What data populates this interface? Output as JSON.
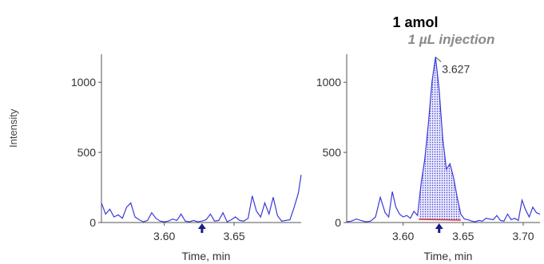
{
  "annotation": {
    "title": "1 amol",
    "subtitle": "1 µL injection"
  },
  "colors": {
    "trace": "#3a3ad8",
    "peak_fill": "#3a3ad8",
    "baseline": "#e03030",
    "axis": "#555555",
    "marker": "#1a1a8c"
  },
  "chart_data": [
    {
      "type": "line",
      "ylabel": "Intensity",
      "xlabel": "Time, min",
      "xlim": [
        3.555,
        3.698
      ],
      "ylim": [
        0,
        1200
      ],
      "xticks": [
        3.6,
        3.65
      ],
      "xtick_labels": [
        "3.60",
        "3.65"
      ],
      "yticks": [
        0,
        500,
        1000
      ],
      "ytick_labels": [
        "0",
        "500",
        "1000"
      ],
      "marker_x": 3.627,
      "series": [
        {
          "x": [
            3.555,
            3.558,
            3.561,
            3.564,
            3.567,
            3.57,
            3.573,
            3.576,
            3.579,
            3.582,
            3.585,
            3.588,
            3.591,
            3.594,
            3.597,
            3.6,
            3.603,
            3.606,
            3.609,
            3.612,
            3.615,
            3.618,
            3.621,
            3.624,
            3.627,
            3.63,
            3.633,
            3.636,
            3.639,
            3.642,
            3.645,
            3.648,
            3.651,
            3.654,
            3.657,
            3.66,
            3.663,
            3.666,
            3.669,
            3.672,
            3.675,
            3.678,
            3.681,
            3.684,
            3.687,
            3.69,
            3.693,
            3.696,
            3.698
          ],
          "y": [
            140,
            60,
            95,
            40,
            55,
            30,
            110,
            140,
            40,
            20,
            5,
            15,
            70,
            30,
            10,
            5,
            10,
            25,
            15,
            60,
            10,
            5,
            15,
            5,
            10,
            20,
            60,
            10,
            15,
            70,
            5,
            20,
            40,
            15,
            10,
            30,
            190,
            80,
            40,
            140,
            60,
            180,
            50,
            10,
            15,
            20,
            110,
            210,
            340
          ]
        }
      ]
    },
    {
      "type": "area",
      "xlabel": "Time, min",
      "xlim": [
        3.553,
        3.714
      ],
      "ylim": [
        0,
        1200
      ],
      "xticks": [
        3.6,
        3.65,
        3.7
      ],
      "xtick_labels": [
        "3.60",
        "3.65",
        "3.70"
      ],
      "yticks": [
        0,
        500,
        1000
      ],
      "ytick_labels": [
        "0",
        "500",
        "1000"
      ],
      "marker_x": 3.63,
      "peak": {
        "apex_x": 3.627,
        "apex_y": 1180,
        "label": "3.627",
        "start_x": 3.613,
        "end_x": 3.648
      },
      "series": [
        {
          "x": [
            3.553,
            3.557,
            3.561,
            3.565,
            3.569,
            3.573,
            3.577,
            3.581,
            3.585,
            3.588,
            3.591,
            3.594,
            3.597,
            3.6,
            3.603,
            3.606,
            3.609,
            3.612,
            3.615,
            3.618,
            3.621,
            3.624,
            3.627,
            3.63,
            3.633,
            3.636,
            3.639,
            3.642,
            3.645,
            3.648,
            3.651,
            3.654,
            3.657,
            3.66,
            3.663,
            3.666,
            3.669,
            3.672,
            3.675,
            3.678,
            3.681,
            3.684,
            3.687,
            3.69,
            3.693,
            3.696,
            3.699,
            3.702,
            3.705,
            3.708,
            3.711,
            3.714
          ],
          "y": [
            5,
            10,
            25,
            15,
            5,
            10,
            40,
            180,
            70,
            40,
            220,
            110,
            60,
            40,
            50,
            30,
            80,
            50,
            280,
            450,
            700,
            1000,
            1180,
            950,
            600,
            380,
            420,
            320,
            180,
            60,
            25,
            20,
            10,
            5,
            15,
            10,
            30,
            25,
            20,
            50,
            15,
            10,
            60,
            20,
            30,
            15,
            160,
            90,
            40,
            110,
            70,
            60
          ]
        }
      ]
    }
  ]
}
